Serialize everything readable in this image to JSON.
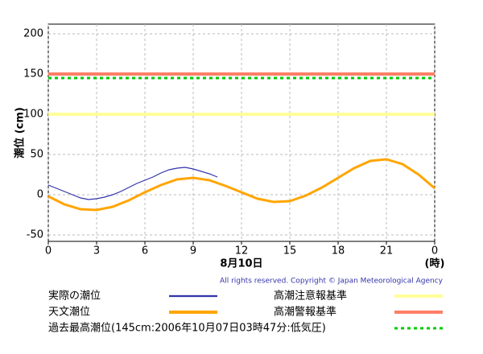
{
  "chart_data": {
    "type": "line",
    "ylabel": "潮位 (cm)",
    "xlabel": "(時)",
    "date_label": "8月10日",
    "copyright": "All rights reserved. Copyright © Japan Meteorological Agency",
    "xlim": [
      0,
      24
    ],
    "xticks": [
      0,
      3,
      6,
      9,
      12,
      15,
      18,
      21,
      {
        "value": 24,
        "label": "0"
      }
    ],
    "ylim": [
      -58,
      212
    ],
    "yticks": [
      -50,
      0,
      50,
      100,
      150,
      200
    ],
    "grid": true,
    "series": [
      {
        "name": "実際の潮位",
        "color": "#3333aa",
        "width": 1.2,
        "x": [
          0,
          0.5,
          1,
          1.5,
          2,
          2.5,
          3,
          3.5,
          4,
          4.5,
          5,
          5.5,
          6,
          6.5,
          7,
          7.5,
          8,
          8.5,
          9,
          9.5,
          10,
          10.5
        ],
        "values": [
          12,
          8,
          4,
          0,
          -4,
          -6,
          -5,
          -3,
          0,
          4,
          9,
          14,
          18,
          22,
          27,
          31,
          33,
          34,
          32,
          29,
          26,
          22
        ]
      },
      {
        "name": "天文潮位",
        "color": "#ffa500",
        "width": 3,
        "x": [
          0,
          1,
          2,
          3,
          4,
          5,
          6,
          7,
          8,
          9,
          10,
          11,
          12,
          13,
          14,
          15,
          16,
          17,
          18,
          19,
          20,
          21,
          22,
          23,
          24
        ],
        "values": [
          -2,
          -12,
          -18,
          -19,
          -15,
          -7,
          3,
          12,
          19,
          21,
          18,
          11,
          3,
          -5,
          -9,
          -8,
          -1,
          9,
          21,
          33,
          42,
          44,
          38,
          25,
          8
        ]
      }
    ],
    "reference_lines": [
      {
        "name": "高潮注意報基準",
        "value": 100,
        "color": "#ffff99",
        "dashed": false
      },
      {
        "name": "高潮警報基準",
        "value": 150,
        "color": "#ff7f66",
        "dashed": false
      },
      {
        "name": "過去最高潮位(145cm:2006年10月07日03時47分:低気圧)",
        "value": 145,
        "color": "#00cc00",
        "dashed": true
      }
    ]
  }
}
